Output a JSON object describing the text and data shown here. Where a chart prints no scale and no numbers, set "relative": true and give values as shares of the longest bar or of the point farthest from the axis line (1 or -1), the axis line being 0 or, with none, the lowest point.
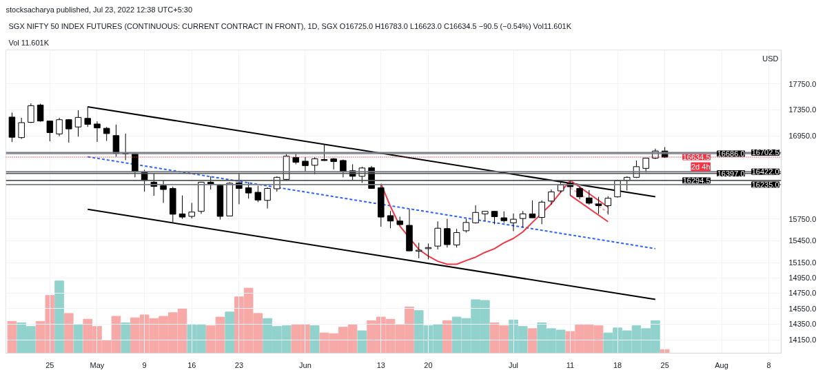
{
  "chart_data": [
    {
      "type": "candlestick",
      "title": "SGX NIFTY 50 INDEX FUTURES (CONTINUOUS: CURRENT CONTRACT IN FRONT), 1D, SGX  O16725.0  H16783.0  L16623.0  C16634.5  −90.5 (−0.54%)  Vol11.601K",
      "subtitle": "Vol 11.601K",
      "annotations": [
        "stocksacharya published, Jul 23, 2022 12:38 UTC+5:30",
        "USD",
        "2d 4h"
      ],
      "categories": [
        null,
        null,
        null,
        null,
        "25",
        null,
        null,
        null,
        null,
        "May",
        null,
        null,
        null,
        null,
        "9",
        null,
        null,
        null,
        null,
        "16",
        null,
        null,
        null,
        null,
        "23",
        null,
        null,
        null,
        null,
        null,
        null,
        "Jun",
        null,
        null,
        null,
        null,
        null,
        null,
        null,
        "13",
        null,
        null,
        null,
        null,
        "20",
        null,
        null,
        null,
        null,
        null,
        null,
        null,
        null,
        "Jul",
        null,
        null,
        null,
        null,
        null,
        "11",
        null,
        null,
        null,
        null,
        "18",
        null,
        null,
        null,
        null,
        "25",
        null,
        null,
        null,
        null,
        null,
        "Aug",
        null,
        null,
        null,
        null,
        "8"
      ],
      "ohlc": [
        [
          17235,
          17305,
          16860,
          16930
        ],
        [
          16925,
          17225,
          16905,
          17150
        ],
        [
          17155,
          17445,
          17145,
          17410
        ],
        [
          17420,
          17440,
          17165,
          17175
        ],
        [
          17175,
          17180,
          16870,
          17000
        ],
        [
          16980,
          17225,
          16945,
          17195
        ],
        [
          17195,
          17205,
          16850,
          17055
        ],
        [
          17085,
          17340,
          16940,
          17230
        ],
        [
          17215,
          17395,
          17085,
          17125
        ],
        [
          17130,
          17170,
          16860,
          17070
        ],
        [
          17065,
          17085,
          16875,
          16985
        ],
        [
          16955,
          17120,
          16640,
          16690
        ],
        [
          16680,
          16985,
          16590,
          16690
        ],
        [
          16685,
          16695,
          16340,
          16420
        ],
        [
          16420,
          16450,
          16135,
          16295
        ],
        [
          16270,
          16395,
          16075,
          16210
        ],
        [
          16220,
          16300,
          15975,
          16165
        ],
        [
          16180,
          16205,
          15705,
          15815
        ],
        [
          15820,
          16080,
          15750,
          15775
        ],
        [
          15785,
          15975,
          15755,
          15845
        ],
        [
          15855,
          16275,
          15820,
          16270
        ],
        [
          16270,
          16355,
          16165,
          16240
        ],
        [
          16225,
          16235,
          15740,
          15785
        ],
        [
          15790,
          16270,
          15785,
          16255
        ],
        [
          16260,
          16400,
          15955,
          16180
        ],
        [
          16190,
          16270,
          16035,
          16115
        ],
        [
          16125,
          16220,
          15985,
          16015
        ],
        [
          16010,
          16195,
          15895,
          16180
        ],
        [
          16175,
          16355,
          16135,
          16340
        ],
        [
          16310,
          16680,
          16290,
          16650
        ],
        [
          16630,
          16680,
          16530,
          16560
        ],
        [
          16575,
          16635,
          16420,
          16510
        ],
        [
          16515,
          16635,
          16385,
          16610
        ],
        [
          16600,
          16820,
          16580,
          16585
        ],
        [
          16610,
          16620,
          16455,
          16570
        ],
        [
          16585,
          16600,
          16340,
          16420
        ],
        [
          16435,
          16530,
          16295,
          16355
        ],
        [
          16355,
          16495,
          16260,
          16475
        ],
        [
          16480,
          16505,
          16175,
          16180
        ],
        [
          16190,
          16245,
          15640,
          15775
        ],
        [
          15795,
          15860,
          15620,
          15720
        ],
        [
          15720,
          15780,
          15665,
          15670
        ],
        [
          15660,
          15885,
          15305,
          15310
        ],
        [
          15305,
          15420,
          15210,
          15320
        ],
        [
          15340,
          15410,
          15195,
          15355
        ],
        [
          15375,
          15715,
          15330,
          15620
        ],
        [
          15615,
          15750,
          15355,
          15395
        ],
        [
          15390,
          15610,
          15355,
          15560
        ],
        [
          15585,
          15750,
          15560,
          15700
        ],
        [
          15695,
          15940,
          15685,
          15840
        ],
        [
          15820,
          15860,
          15720,
          15855
        ],
        [
          15855,
          15860,
          15675,
          15780
        ],
        [
          15765,
          15855,
          15695,
          15725
        ],
        [
          15695,
          15825,
          15580,
          15745
        ],
        [
          15755,
          15860,
          15635,
          15820
        ],
        [
          15820,
          16010,
          15765,
          15765
        ],
        [
          15770,
          16010,
          15675,
          15985
        ],
        [
          16000,
          16165,
          15950,
          16130
        ],
        [
          16145,
          16275,
          16120,
          16230
        ],
        [
          16255,
          16295,
          16080,
          16205
        ],
        [
          16180,
          16210,
          16025,
          16060
        ],
        [
          16045,
          16155,
          15950,
          15970
        ],
        [
          15960,
          16060,
          15820,
          15935
        ],
        [
          15935,
          16070,
          15810,
          16040
        ],
        [
          16060,
          16305,
          16050,
          16290
        ],
        [
          16295,
          16355,
          16150,
          16340
        ],
        [
          16340,
          16585,
          16330,
          16495
        ],
        [
          16470,
          16620,
          16410,
          16620
        ],
        [
          16620,
          16760,
          16605,
          16725
        ],
        [
          16725,
          16783,
          16623,
          16634.5
        ],
        null,
        null,
        null,
        null,
        null,
        null,
        null,
        null,
        null,
        null,
        null
      ],
      "series": [
        {
          "type": "line",
          "values": [
            null,
            null,
            null,
            null,
            null,
            null,
            null,
            null,
            17393,
            null,
            null,
            null,
            null,
            null,
            null,
            null,
            null,
            null,
            null,
            null,
            null,
            null,
            null,
            null,
            null,
            null,
            null,
            null,
            null,
            null,
            null,
            null,
            null,
            null,
            null,
            null,
            null,
            null,
            null,
            null,
            null,
            null,
            null,
            null,
            null,
            null,
            null,
            null,
            null,
            null,
            null,
            null,
            null,
            null,
            null,
            null,
            null,
            null,
            null,
            null,
            null,
            null,
            null,
            null,
            null,
            null,
            null,
            null,
            16061,
            null,
            null,
            null,
            null,
            null,
            null,
            null,
            null,
            null,
            null,
            null,
            null
          ],
          "color": "#000000",
          "line_style": "solid"
        },
        {
          "type": "line",
          "values": [
            null,
            null,
            null,
            null,
            null,
            null,
            null,
            null,
            15883,
            null,
            null,
            null,
            null,
            null,
            null,
            null,
            null,
            null,
            null,
            null,
            null,
            null,
            null,
            null,
            null,
            null,
            null,
            null,
            null,
            null,
            null,
            null,
            null,
            null,
            null,
            null,
            null,
            null,
            null,
            null,
            null,
            null,
            null,
            null,
            null,
            null,
            null,
            null,
            null,
            null,
            null,
            null,
            null,
            null,
            null,
            null,
            null,
            null,
            null,
            null,
            null,
            null,
            null,
            null,
            null,
            null,
            null,
            null,
            14666,
            null,
            null,
            null,
            null,
            null,
            null,
            null,
            null,
            null,
            null,
            null,
            null
          ],
          "color": "#000000",
          "line_style": "solid"
        },
        {
          "type": "line",
          "values": [
            null,
            null,
            null,
            null,
            null,
            null,
            null,
            null,
            16640,
            null,
            null,
            null,
            null,
            null,
            null,
            null,
            null,
            null,
            null,
            null,
            null,
            null,
            null,
            null,
            null,
            null,
            null,
            null,
            null,
            null,
            null,
            null,
            null,
            null,
            null,
            null,
            null,
            null,
            null,
            null,
            null,
            null,
            null,
            null,
            null,
            null,
            null,
            null,
            null,
            null,
            null,
            null,
            null,
            null,
            null,
            null,
            null,
            null,
            null,
            null,
            null,
            null,
            null,
            null,
            null,
            null,
            null,
            null,
            15340,
            null,
            null,
            null,
            null,
            null,
            null,
            null,
            null,
            null,
            null,
            null,
            null
          ],
          "color": "#2962ff",
          "line_style": "dashed"
        },
        {
          "type": "line",
          "values": [
            null,
            null,
            null,
            null,
            null,
            null,
            null,
            null,
            null,
            null,
            null,
            null,
            null,
            null,
            null,
            null,
            null,
            null,
            null,
            null,
            null,
            null,
            null,
            null,
            null,
            null,
            null,
            null,
            null,
            null,
            null,
            null,
            null,
            null,
            null,
            null,
            null,
            null,
            null,
            16247,
            15925,
            15650,
            null,
            15330,
            15240,
            15170,
            15130,
            15130,
            15180,
            15225,
            15290,
            15340,
            15420,
            15480,
            15570,
            15700,
            null,
            15960,
            16130,
            16296,
            null,
            null,
            null,
            null,
            null,
            null,
            null,
            null,
            null,
            null,
            null,
            null,
            null,
            null,
            null,
            null,
            null,
            null,
            null,
            null,
            null
          ],
          "color": "#f23645",
          "line_style": "solid"
        },
        {
          "type": "line",
          "values": [
            null,
            null,
            null,
            null,
            null,
            null,
            null,
            null,
            null,
            null,
            null,
            null,
            null,
            null,
            null,
            null,
            null,
            null,
            null,
            null,
            null,
            null,
            null,
            null,
            null,
            null,
            null,
            null,
            null,
            null,
            null,
            null,
            null,
            null,
            null,
            null,
            null,
            null,
            null,
            null,
            null,
            null,
            null,
            null,
            null,
            null,
            null,
            null,
            null,
            null,
            null,
            null,
            null,
            null,
            null,
            null,
            null,
            null,
            null,
            16296,
            null,
            null,
            null,
            15915,
            null,
            null,
            null,
            null,
            null,
            null,
            null,
            null,
            null,
            null,
            null,
            null,
            null,
            null,
            null,
            null,
            null
          ],
          "color": "#f23645",
          "line_style": "solid"
        },
        {
          "type": "line",
          "values": [
            null,
            null,
            null,
            null,
            null,
            null,
            null,
            null,
            null,
            null,
            null,
            null,
            null,
            null,
            null,
            null,
            null,
            null,
            null,
            null,
            null,
            null,
            null,
            null,
            null,
            null,
            null,
            null,
            null,
            null,
            null,
            null,
            null,
            null,
            null,
            null,
            null,
            null,
            null,
            null,
            null,
            null,
            null,
            null,
            null,
            null,
            null,
            null,
            null,
            null,
            null,
            null,
            null,
            null,
            null,
            null,
            null,
            null,
            null,
            16082,
            null,
            null,
            null,
            15710,
            null,
            null,
            null,
            null,
            null,
            null,
            null,
            null,
            null,
            null,
            null,
            null,
            null,
            null,
            null,
            null,
            null
          ],
          "color": "#f23645",
          "line_style": "solid"
        },
        {
          "type": "line",
          "values": [
            null,
            null,
            null,
            null,
            null,
            null,
            null,
            null,
            null,
            null,
            null,
            null,
            null,
            null,
            null,
            null,
            null,
            null,
            null,
            null,
            null,
            null,
            null,
            null,
            null,
            null,
            null,
            null,
            null,
            null,
            null,
            null,
            null,
            null,
            null,
            null,
            null,
            null,
            null,
            null,
            null,
            null,
            null,
            null,
            null,
            null,
            null,
            null,
            null,
            null,
            null,
            null,
            null,
            null,
            null,
            null,
            null,
            null,
            null,
            16188,
            null,
            null,
            null,
            15840,
            null,
            null,
            null,
            null,
            null,
            null,
            null,
            null,
            null,
            null,
            null,
            null,
            null,
            null,
            null,
            null,
            null
          ],
          "color": "#f7a9a7",
          "line_style": "dashed"
        }
      ],
      "ref_lines": [
        {
          "axis": "y",
          "value": 16702.5,
          "label": "16702.5",
          "color": "#787b86",
          "line_style": "solid"
        },
        {
          "axis": "y",
          "value": 16686,
          "label": "16686.0",
          "color": "#787b86",
          "line_style": "solid"
        },
        {
          "axis": "y",
          "value": 16634.5,
          "label": "16634.5",
          "color": "#f23645",
          "line_style": "dotted"
        },
        {
          "axis": "y",
          "value": 16422,
          "label": "16422.0",
          "color": "#787b86",
          "line_style": "solid"
        },
        {
          "axis": "y",
          "value": 16397,
          "label": "16397.0",
          "color": "#555555",
          "line_style": "solid"
        },
        {
          "axis": "y",
          "value": 16294.5,
          "label": "16294.5",
          "color": "#555555",
          "line_style": "solid"
        },
        {
          "axis": "y",
          "value": 16235,
          "label": "16235.0",
          "color": "#787b86",
          "line_style": "solid"
        }
      ],
      "log": true,
      "ylim": [
        13985,
        18290
      ],
      "yticks": [
        {
          "value": 17750,
          "label": "17750.0"
        },
        {
          "value": 17350,
          "label": "17350.0"
        },
        {
          "value": 16950,
          "label": "16950.0"
        },
        {
          "value": 15750,
          "label": "15750.0"
        },
        {
          "value": 15450,
          "label": "15450.0"
        },
        {
          "value": 15150,
          "label": "15150.0"
        },
        {
          "value": 14950,
          "label": "14950.0"
        },
        {
          "value": 14750,
          "label": "14750.0"
        },
        {
          "value": 14550,
          "label": "14550.0"
        },
        {
          "value": 14350,
          "label": "14350.0"
        },
        {
          "value": 14150,
          "label": "14150.0"
        }
      ],
      "grid": true
    },
    {
      "type": "bar",
      "relative": true,
      "categories": [
        null,
        null,
        null,
        null,
        null,
        null,
        null,
        null,
        null,
        null,
        null,
        null,
        null,
        null,
        null,
        null,
        null,
        null,
        null,
        null,
        null,
        null,
        null,
        null,
        null,
        null,
        null,
        null,
        null,
        null,
        null,
        null,
        null,
        null,
        null,
        null,
        null,
        null,
        null,
        null,
        null,
        null,
        null,
        null,
        null,
        null,
        null,
        null,
        null,
        null,
        null,
        null,
        null,
        null,
        null,
        null,
        null,
        null,
        null,
        null,
        null,
        null,
        null,
        null,
        null,
        null,
        null,
        null,
        null,
        null,
        null,
        null,
        null,
        null,
        null,
        null,
        null,
        null,
        null,
        null,
        null
      ],
      "values": [
        0.44,
        0.42,
        0.37,
        0.44,
        0.8,
        1.0,
        0.55,
        0.39,
        0.47,
        0.37,
        0.18,
        0.51,
        0.42,
        0.49,
        0.53,
        0.48,
        0.51,
        0.56,
        0.62,
        0.39,
        0.39,
        0.38,
        0.5,
        0.57,
        0.78,
        0.9,
        0.55,
        0.48,
        0.37,
        0.38,
        0.39,
        0.4,
        0.38,
        0.28,
        0.27,
        0.36,
        0.4,
        0.31,
        0.45,
        0.5,
        0.47,
        0.39,
        0.64,
        0.59,
        0.38,
        0.4,
        0.45,
        0.5,
        0.48,
        0.74,
        0.73,
        0.42,
        0.38,
        0.46,
        0.37,
        0.34,
        0.42,
        0.34,
        0.32,
        0.3,
        0.39,
        0.39,
        0.38,
        0.28,
        0.35,
        0.31,
        0.38,
        0.34,
        0.45,
        0.05,
        null,
        null,
        null,
        null,
        null,
        null,
        null,
        null,
        null,
        null,
        null
      ],
      "colors": [
        "#f7a9a7",
        "#92d2cc",
        "#92d2cc",
        "#f7a9a7",
        "#f7a9a7",
        "#92d2cc",
        "#f7a9a7",
        "#92d2cc",
        "#f7a9a7",
        "#f7a9a7",
        "#f7a9a7",
        "#f7a9a7",
        "#92d2cc",
        "#f7a9a7",
        "#f7a9a7",
        "#f7a9a7",
        "#f7a9a7",
        "#f7a9a7",
        "#f7a9a7",
        "#92d2cc",
        "#92d2cc",
        "#f7a9a7",
        "#f7a9a7",
        "#92d2cc",
        "#f7a9a7",
        "#f7a9a7",
        "#f7a9a7",
        "#92d2cc",
        "#92d2cc",
        "#92d2cc",
        "#f7a9a7",
        "#f7a9a7",
        "#92d2cc",
        "#f7a9a7",
        "#f7a9a7",
        "#f7a9a7",
        "#f7a9a7",
        "#92d2cc",
        "#f7a9a7",
        "#f7a9a7",
        "#f7a9a7",
        "#f7a9a7",
        "#f7a9a7",
        "#92d2cc",
        "#92d2cc",
        "#92d2cc",
        "#f7a9a7",
        "#92d2cc",
        "#92d2cc",
        "#92d2cc",
        "#92d2cc",
        "#f7a9a7",
        "#f7a9a7",
        "#92d2cc",
        "#92d2cc",
        "#f7a9a7",
        "#92d2cc",
        "#92d2cc",
        "#92d2cc",
        "#f7a9a7",
        "#f7a9a7",
        "#f7a9a7",
        "#f7a9a7",
        "#92d2cc",
        "#92d2cc",
        "#92d2cc",
        "#92d2cc",
        "#92d2cc",
        "#92d2cc",
        "#f7a9a7",
        null,
        null,
        null,
        null,
        null,
        null,
        null,
        null,
        null,
        null,
        null
      ]
    }
  ]
}
